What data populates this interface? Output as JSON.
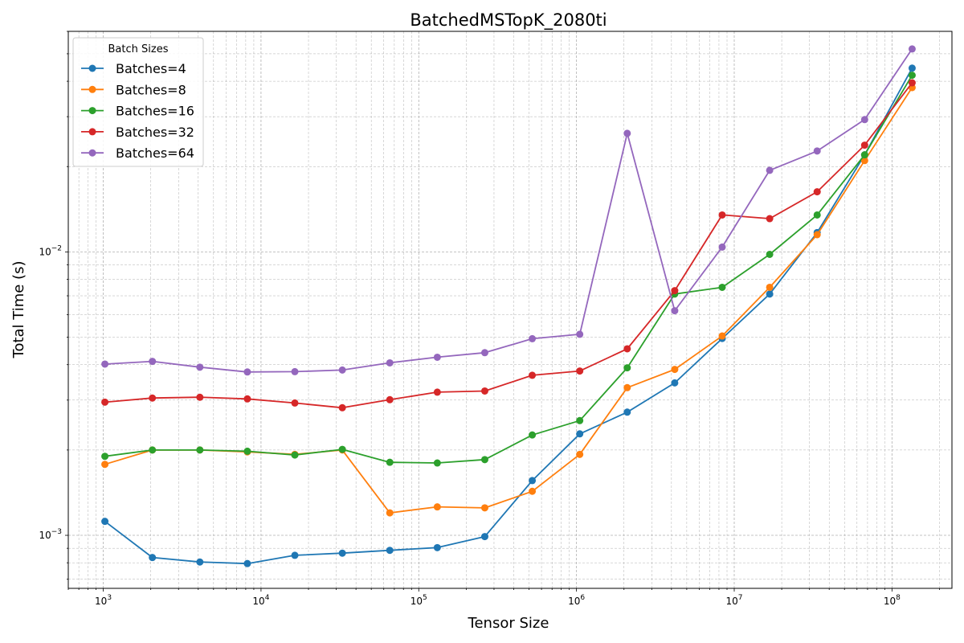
{
  "chart_data": {
    "type": "line",
    "title": "BatchedMSTopK_2080ti",
    "xlabel": "Tensor Size",
    "ylabel": "Total Time (s)",
    "xscale": "log",
    "yscale": "log",
    "xlim": [
      600,
      240000000
    ],
    "ylim": [
      0.00065,
      0.06
    ],
    "grid": true,
    "legend": {
      "title": "Batch Sizes",
      "position": "top-left"
    },
    "x_tick_labels": [
      {
        "value": 1000,
        "base": "10",
        "exp": "3"
      },
      {
        "value": 10000,
        "base": "10",
        "exp": "4"
      },
      {
        "value": 100000,
        "base": "10",
        "exp": "5"
      },
      {
        "value": 1000000,
        "base": "10",
        "exp": "6"
      },
      {
        "value": 10000000,
        "base": "10",
        "exp": "7"
      },
      {
        "value": 100000000,
        "base": "10",
        "exp": "8"
      }
    ],
    "y_tick_labels": [
      {
        "value": 0.001,
        "base": "10",
        "exp": "−3"
      },
      {
        "value": 0.01,
        "base": "10",
        "exp": "−2"
      }
    ],
    "x": [
      1024,
      2048,
      4096,
      8192,
      16384,
      32768,
      65536,
      131072,
      262144,
      524288,
      1048576,
      2097152,
      4194304,
      8388608,
      16777216,
      33554432,
      67108864,
      134217728
    ],
    "series": [
      {
        "name": "Batches=4",
        "color": "#1f77b4",
        "values": [
          0.00112,
          0.000835,
          0.000805,
          0.000795,
          0.00085,
          0.000865,
          0.000885,
          0.000905,
          0.00099,
          0.00156,
          0.00228,
          0.00272,
          0.00345,
          0.00495,
          0.0071,
          0.0117,
          0.022,
          0.0445
        ]
      },
      {
        "name": "Batches=8",
        "color": "#ff7f0e",
        "values": [
          0.00178,
          0.002,
          0.002,
          0.00197,
          0.00193,
          0.002,
          0.0012,
          0.00126,
          0.00125,
          0.00143,
          0.00193,
          0.00332,
          0.00385,
          0.00505,
          0.0075,
          0.0115,
          0.021,
          0.038
        ]
      },
      {
        "name": "Batches=16",
        "color": "#2ca02c",
        "values": [
          0.0019,
          0.002,
          0.002,
          0.00198,
          0.00192,
          0.00201,
          0.00181,
          0.0018,
          0.00185,
          0.00226,
          0.00254,
          0.0039,
          0.0071,
          0.0075,
          0.0098,
          0.0135,
          0.022,
          0.042
        ]
      },
      {
        "name": "Batches=32",
        "color": "#d62728",
        "values": [
          0.00295,
          0.00305,
          0.00307,
          0.00303,
          0.00293,
          0.00282,
          0.00301,
          0.0032,
          0.00323,
          0.00367,
          0.0038,
          0.00455,
          0.0073,
          0.0135,
          0.0131,
          0.0163,
          0.0238,
          0.0395
        ]
      },
      {
        "name": "Batches=64",
        "color": "#9467bd",
        "values": [
          0.00402,
          0.00411,
          0.00392,
          0.00377,
          0.00378,
          0.00383,
          0.00406,
          0.00425,
          0.00441,
          0.00494,
          0.00512,
          0.0262,
          0.0062,
          0.0104,
          0.0194,
          0.0227,
          0.0293,
          0.052
        ]
      }
    ]
  }
}
